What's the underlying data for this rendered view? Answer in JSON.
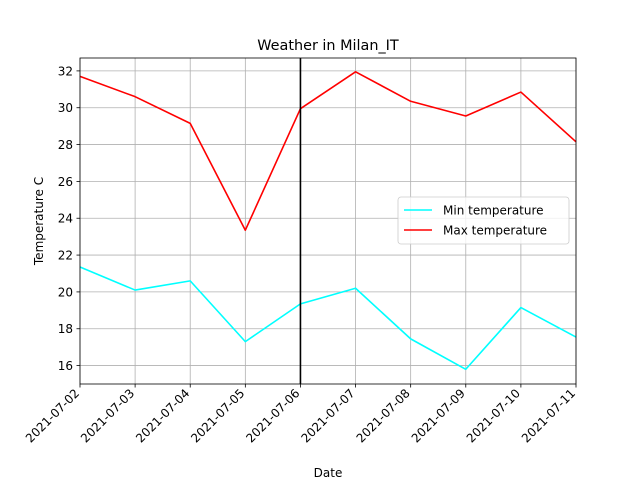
{
  "chart_data": {
    "type": "line",
    "title": "Weather in Milan_IT",
    "xlabel": "Date",
    "ylabel": "Temperature C",
    "categories": [
      "2021-07-02",
      "2021-07-03",
      "2021-07-04",
      "2021-07-05",
      "2021-07-06",
      "2021-07-07",
      "2021-07-08",
      "2021-07-09",
      "2021-07-10",
      "2021-07-11"
    ],
    "ylim": [
      15.0,
      32.7
    ],
    "yticks": [
      16,
      18,
      20,
      22,
      24,
      26,
      28,
      30,
      32
    ],
    "grid": true,
    "legend_position": "center-right",
    "vline_at": "2021-07-06",
    "vline_color": "#000000",
    "series": [
      {
        "name": "Min temperature",
        "color": "#00ffff",
        "values": [
          21.35,
          20.1,
          20.6,
          17.3,
          19.35,
          20.2,
          17.45,
          15.8,
          19.15,
          17.55
        ]
      },
      {
        "name": "Max temperature",
        "color": "#ff0000",
        "values": [
          31.7,
          30.6,
          29.15,
          23.35,
          29.95,
          31.95,
          30.35,
          29.55,
          30.85,
          28.15
        ]
      }
    ]
  }
}
